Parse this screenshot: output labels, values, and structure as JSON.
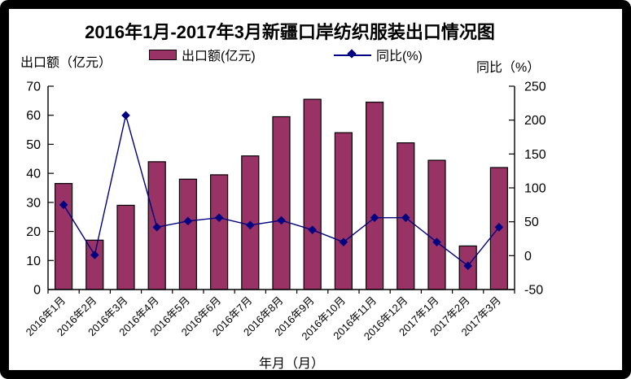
{
  "title": "2016年1月-2017年3月新疆口岸纺织服装出口情况图",
  "legend": {
    "bar_label": "出口额(亿元)",
    "line_label": "同比(%)"
  },
  "axes": {
    "left_title": "出口额（亿元）",
    "right_title": "同比（%）",
    "x_title": "年月（月）",
    "left_tick_labels": [
      "0",
      "10",
      "20",
      "30",
      "40",
      "50",
      "60",
      "70"
    ],
    "right_tick_labels": [
      "-50",
      "0",
      "50",
      "100",
      "150",
      "200",
      "250"
    ]
  },
  "colors": {
    "bar_fill": "#993366",
    "bar_border": "#000000",
    "line": "#000080",
    "marker": "#000080",
    "axis": "#000000",
    "text": "#000000"
  },
  "chart_data": {
    "type": "bar+line combo",
    "title": "2016年1月-2017年3月新疆口岸纺织服装出口情况图",
    "xlabel": "年月（月）",
    "ylabel_left": "出口额（亿元）",
    "ylabel_right": "同比（%）",
    "categories": [
      "2016年1月",
      "2016年2月",
      "2016年3月",
      "2016年4月",
      "2016年5月",
      "2016年6月",
      "2016年7月",
      "2016年8月",
      "2016年9月",
      "2016年10月",
      "2016年11月",
      "2016年12月",
      "2017年1月",
      "2017年2月",
      "2017年3月"
    ],
    "series": [
      {
        "name": "出口额(亿元)",
        "type": "bar",
        "axis": "left",
        "values": [
          36.5,
          17,
          29,
          44,
          38,
          39.5,
          46,
          59.5,
          65.5,
          54,
          64.5,
          50.5,
          44.5,
          15,
          42
        ]
      },
      {
        "name": "同比(%)",
        "type": "line",
        "axis": "right",
        "marker": "diamond",
        "values": [
          75,
          1,
          207,
          42,
          51,
          56,
          45,
          52,
          38,
          20,
          56,
          56,
          20,
          -15,
          42
        ]
      }
    ],
    "ylim_left": [
      0,
      70
    ],
    "ytick_step_left": 10,
    "ylim_right": [
      -50,
      250
    ],
    "ytick_step_right": 50,
    "grid": false,
    "legend_position": "top",
    "x_labels_rotation_deg": 45
  }
}
